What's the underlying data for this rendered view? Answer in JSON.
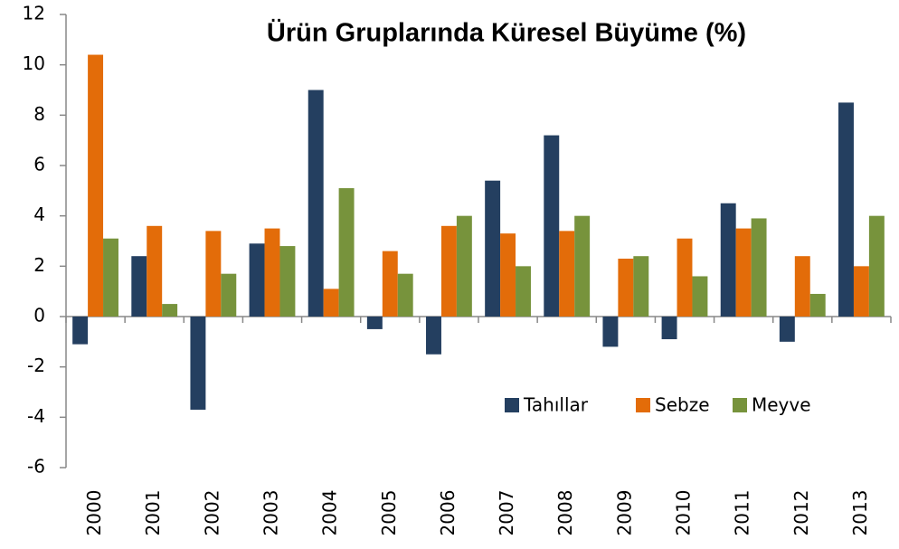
{
  "chart_data": {
    "type": "bar",
    "title": "Ürün Gruplarında Küresel Büyüme (%)",
    "categories": [
      "2000",
      "2001",
      "2002",
      "2003",
      "2004",
      "2005",
      "2006",
      "2007",
      "2008",
      "2009",
      "2010",
      "2011",
      "2012",
      "2013"
    ],
    "series": [
      {
        "name": "Tahıllar",
        "color": "#243f60",
        "values": [
          -1.1,
          2.4,
          -3.7,
          2.9,
          9.0,
          -0.5,
          -1.5,
          5.4,
          7.2,
          -1.2,
          -0.9,
          4.5,
          -1.0,
          8.5
        ]
      },
      {
        "name": "Sebze",
        "color": "#e36c09",
        "values": [
          10.4,
          3.6,
          3.4,
          3.5,
          1.1,
          2.6,
          3.6,
          3.3,
          3.4,
          2.3,
          3.1,
          3.5,
          2.4,
          2.0
        ]
      },
      {
        "name": "Meyve",
        "color": "#77933c",
        "values": [
          3.1,
          0.5,
          1.7,
          2.8,
          5.1,
          1.7,
          4.0,
          2.0,
          4.0,
          2.4,
          1.6,
          3.9,
          0.9,
          4.0
        ]
      }
    ],
    "ylim": [
      -6,
      12
    ],
    "yticks": [
      -6,
      -4,
      -2,
      0,
      2,
      4,
      6,
      8,
      10,
      12
    ],
    "grid": false,
    "legend": "lower right"
  }
}
